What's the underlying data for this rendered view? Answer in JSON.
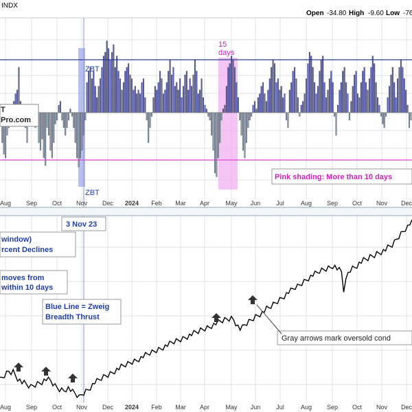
{
  "header": {
    "symbol_fragment": "INDX",
    "open_label": "Open",
    "open_value": "-34.80",
    "high_label": "High",
    "high_value": "-9.60",
    "low_label": "Low",
    "low_value": "-76"
  },
  "annotations": {
    "days_num": "15",
    "days_word": "days",
    "zbt": "ZBT",
    "pink_note": "Pink shading: More than 10 days",
    "logo_line1": "T",
    "logo_line2": "Pro.com",
    "date_callout": "3 Nov 23",
    "legend_line1": "window)",
    "legend_line2": "rcent Declines",
    "moves_line1": "moves from",
    "moves_line2": "within 10 days",
    "blue_line1": "Blue Line = Zweig",
    "blue_line2": "Breadth Thrust",
    "gray_arrows": "Gray arrows mark oversold cond"
  },
  "colors": {
    "bar_positive": "#5a5fb0",
    "bar_negative": "#8a9aa8",
    "reference_line": "#2b3a8c",
    "pink_line": "#e040d0",
    "pink_shade": "#f0b0f0",
    "zbt_shade": "#a8b0e8",
    "annotation_text": "#1f3fa8",
    "pink_text": "#d020c0",
    "grid": "#dde3ea",
    "price_line": "#000000",
    "arrow": "#333333"
  },
  "chart_data": [
    {
      "type": "bar",
      "panel": "top",
      "title": "",
      "x_tick_labels": [
        "Aug",
        "Sep",
        "Oct",
        "Nov",
        "Dec",
        "2024",
        "Feb",
        "Mar",
        "Apr",
        "May",
        "Jun",
        "Jul",
        "Aug",
        "Sep",
        "Oct",
        "Nov",
        "Dec"
      ],
      "upper_line": "blue horizontal line near top",
      "lower_line": "magenta horizontal line",
      "zero_line": true,
      "grid": true,
      "series": [
        {
          "values": [
            -10,
            -40,
            -55,
            -60,
            -30,
            -20,
            -10,
            5,
            15,
            25,
            30,
            60,
            15,
            5,
            -5,
            -20,
            -40,
            -10,
            -5,
            -2,
            -1,
            -20,
            -15,
            -40,
            -50,
            -35,
            -60,
            -70,
            -20,
            -30,
            -50,
            -60,
            -40,
            -15,
            -10,
            10,
            15,
            -10,
            -20,
            -30,
            -20,
            -10,
            5,
            -5,
            -20,
            -40,
            -60,
            -72,
            -60,
            -50,
            -30,
            -10,
            40,
            55,
            60,
            45,
            55,
            35,
            20,
            35,
            45,
            60,
            75,
            80,
            95,
            85,
            70,
            80,
            90,
            60,
            75,
            55,
            45,
            30,
            40,
            55,
            60,
            65,
            50,
            45,
            30,
            35,
            25,
            30,
            25,
            40,
            45,
            20,
            -10,
            -40,
            -20,
            -5,
            20,
            35,
            30,
            40,
            55,
            45,
            25,
            30,
            40,
            55,
            70,
            50,
            60,
            35,
            40,
            30,
            45,
            20,
            35,
            50,
            55,
            30,
            45,
            35,
            50,
            70,
            55,
            25,
            30,
            45,
            20,
            10,
            5,
            -5,
            -10,
            -30,
            -50,
            -80,
            -85,
            -60,
            -40,
            -10,
            5,
            10,
            35,
            60,
            65,
            75,
            70,
            60,
            40,
            20,
            -10,
            -30,
            -50,
            -60,
            -40,
            -20,
            -10,
            -5,
            10,
            15,
            5,
            20,
            25,
            35,
            40,
            25,
            15,
            30,
            45,
            60,
            70,
            65,
            40,
            45,
            30,
            35,
            20,
            25,
            -10,
            -20,
            30,
            40,
            55,
            60,
            45,
            20,
            -5,
            10,
            15,
            25,
            45,
            65,
            80,
            75,
            60,
            40,
            25,
            35,
            55,
            70,
            75,
            40,
            20,
            30,
            45,
            55,
            40,
            -5,
            -30,
            10,
            30,
            40,
            55,
            60,
            40,
            25,
            -10,
            15,
            35,
            50,
            55,
            25,
            20,
            40,
            55,
            60,
            40,
            30,
            45,
            60,
            75,
            65,
            40,
            20,
            10,
            -5,
            -15,
            -20,
            -5,
            20,
            35,
            50,
            60,
            40,
            20,
            45,
            60,
            70,
            60,
            45,
            30,
            10,
            -20,
            -10
          ]
        }
      ]
    },
    {
      "type": "line",
      "panel": "bottom",
      "title": "",
      "x_tick_labels": [
        "Aug",
        "Sep",
        "Oct",
        "Nov",
        "Dec",
        "2024",
        "Feb",
        "Mar",
        "Apr",
        "May",
        "Jun",
        "Jul",
        "Aug",
        "Sep",
        "Oct",
        "Nov",
        "Dec"
      ],
      "grid": true,
      "series": [
        {
          "values": [
            500,
            505,
            510,
            515,
            520,
            518,
            520,
            512,
            505,
            500,
            495,
            493,
            490,
            487,
            485,
            488,
            490,
            493,
            495,
            497,
            500,
            502,
            500,
            498,
            492,
            487,
            483,
            480,
            479,
            478,
            481,
            483,
            478,
            473,
            470,
            466,
            462,
            468,
            472,
            476,
            480,
            485,
            490,
            495,
            497,
            500,
            504,
            507,
            510,
            512,
            515,
            518,
            521,
            524,
            526,
            529,
            531,
            534,
            536,
            539,
            541,
            543,
            545,
            548,
            550,
            553,
            555,
            557,
            560,
            562,
            564,
            567,
            569,
            571,
            574,
            576,
            578,
            580,
            583,
            585,
            587,
            589,
            591,
            593,
            596,
            598,
            600,
            602,
            604,
            606,
            608,
            611,
            613,
            615,
            617,
            619,
            622,
            624,
            626,
            628,
            630,
            632,
            634,
            636,
            637,
            638,
            636,
            628,
            620,
            614,
            616,
            622,
            626,
            630,
            634,
            638,
            642,
            645,
            648,
            650,
            654,
            658,
            660,
            664,
            668,
            672,
            676,
            680,
            684,
            688,
            692,
            696,
            698,
            702,
            706,
            708,
            712,
            716,
            720,
            724,
            728,
            731,
            734,
            736,
            738,
            742,
            744,
            746,
            748,
            750,
            752,
            755,
            753,
            748,
            744,
            740,
            700,
            720,
            740,
            746,
            750,
            752,
            756,
            760,
            763,
            766,
            768,
            770,
            774,
            776,
            778,
            782,
            784,
            786,
            788,
            790,
            794,
            797,
            800,
            806,
            814,
            820,
            826,
            832,
            838,
            842,
            848,
            850
          ]
        }
      ]
    }
  ]
}
